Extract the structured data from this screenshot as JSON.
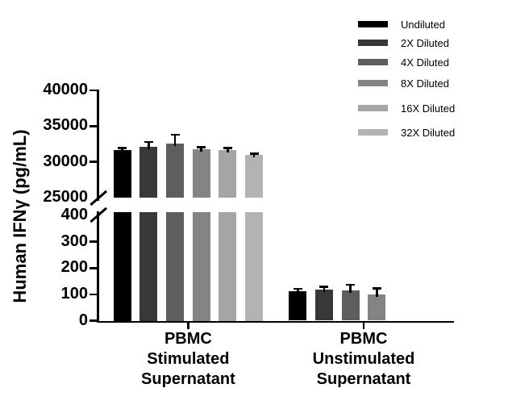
{
  "chart_data": {
    "type": "bar",
    "title": "",
    "ylabel": "Human IFNγ (pg/mL)",
    "xlabel": "",
    "grid": false,
    "legend_position": "top-right",
    "categories": [
      {
        "name": "PBMC Stimulated Supernatant",
        "lines": [
          "PBMC",
          "Stimulated",
          "Supernatant"
        ]
      },
      {
        "name": "PBMC Unstimulated Supernatant",
        "lines": [
          "PBMC",
          "Unstimulated",
          "Supernatant"
        ]
      }
    ],
    "series": [
      {
        "name": "Undiluted",
        "color": "#000000",
        "values": [
          31700,
          111
        ],
        "sem": [
          250,
          10
        ]
      },
      {
        "name": "2X Diluted",
        "color": "#383838",
        "values": [
          32050,
          118
        ],
        "sem": [
          760,
          11
        ]
      },
      {
        "name": "4X Diluted",
        "color": "#5e5e5e",
        "values": [
          32550,
          116
        ],
        "sem": [
          1250,
          21
        ]
      },
      {
        "name": "8X Diluted",
        "color": "#848484",
        "values": [
          31800,
          99
        ],
        "sem": [
          260,
          24
        ]
      },
      {
        "name": "16X Diluted",
        "color": "#a5a5a5",
        "values": [
          31700,
          null
        ],
        "sem": [
          230,
          null
        ]
      },
      {
        "name": "32X Diluted",
        "color": "#b3b3b3",
        "values": [
          30950,
          null
        ],
        "sem": [
          190,
          null
        ]
      }
    ],
    "yaxis": {
      "axis_break": true,
      "upper": {
        "min": 25000,
        "max": 40000,
        "ticks": [
          25000,
          30000,
          35000,
          40000
        ]
      },
      "lower": {
        "min": 0,
        "max": 400,
        "ticks": [
          0,
          100,
          200,
          300,
          400
        ]
      }
    }
  },
  "colors": {
    "axis": "#000000",
    "text": "#000000",
    "background": "#ffffff"
  }
}
